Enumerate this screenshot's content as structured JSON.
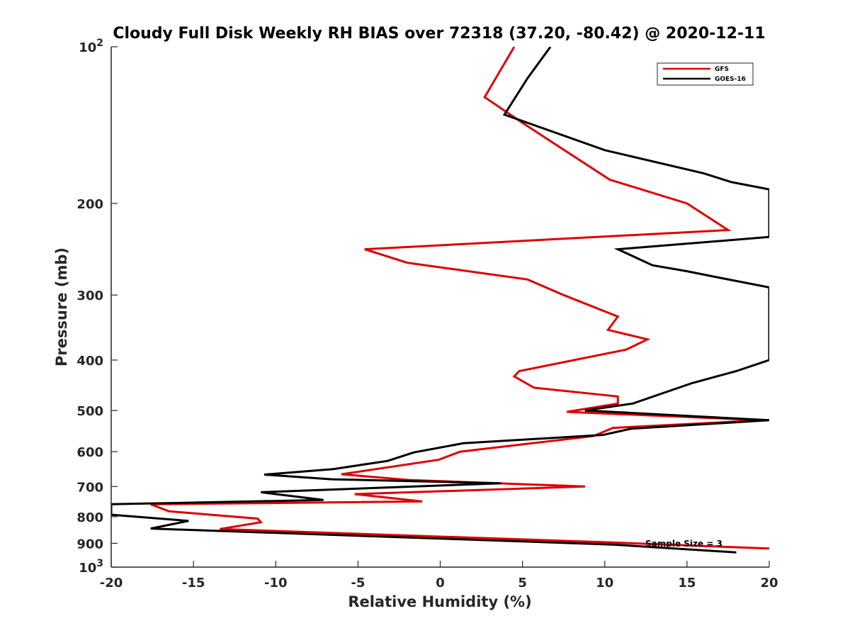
{
  "chart_data": {
    "type": "line",
    "title": "Cloudy Full Disk Weekly RH BIAS over 72318 (37.20, -80.42) @ 2020-12-11",
    "xlabel": "Relative Humidity (%)",
    "ylabel": "Pressure (mb)",
    "xlim": [
      -20,
      20
    ],
    "ylim": [
      100,
      1000
    ],
    "y_scale": "log",
    "y_reversed": true,
    "grid": false,
    "legend_position": "top-right",
    "x_tick_labels": [
      "-20",
      "-15",
      "-10",
      "-5",
      "0",
      "5",
      "10",
      "15",
      "20"
    ],
    "x_ticks": [
      -20,
      -15,
      -10,
      -5,
      0,
      5,
      10,
      15,
      20
    ],
    "y_ticks": [
      200,
      300,
      400,
      500,
      600,
      700,
      800,
      900
    ],
    "y_tick_labels": [
      "200",
      "300",
      "400",
      "500",
      "600",
      "700",
      "800",
      "900"
    ],
    "y_top_label": {
      "base": "10",
      "exp": "2"
    },
    "y_bottom_label": {
      "base": "10",
      "exp": "3"
    },
    "annotation": "Sample Size = 3",
    "series": [
      {
        "name": "GFS",
        "color": "#e00000",
        "points": [
          [
            4.5,
            100
          ],
          [
            2.7,
            125
          ],
          [
            5.0,
            140
          ],
          [
            10.3,
            180
          ],
          [
            15.0,
            200
          ],
          [
            17.5,
            225
          ],
          [
            -4.6,
            245
          ],
          [
            -2.0,
            260
          ],
          [
            5.3,
            280
          ],
          [
            7.5,
            300
          ],
          [
            10.8,
            330
          ],
          [
            10.2,
            350
          ],
          [
            12.6,
            365
          ],
          [
            11.3,
            382
          ],
          [
            4.8,
            420
          ],
          [
            4.5,
            430
          ],
          [
            5.7,
            452
          ],
          [
            10.8,
            470
          ],
          [
            10.8,
            485
          ],
          [
            7.7,
            503
          ],
          [
            19.6,
            522
          ],
          [
            10.5,
            540
          ],
          [
            9.3,
            560
          ],
          [
            1.2,
            600
          ],
          [
            -0.1,
            622
          ],
          [
            -6.0,
            663
          ],
          [
            -1.9,
            680
          ],
          [
            8.8,
            700
          ],
          [
            -5.2,
            724
          ],
          [
            -1.1,
            748
          ],
          [
            -17.6,
            757
          ],
          [
            -16.5,
            781
          ],
          [
            -11.1,
            807
          ],
          [
            -10.9,
            820
          ],
          [
            -13.4,
            845
          ],
          [
            10.5,
            897
          ],
          [
            20.0,
            921
          ]
        ]
      },
      {
        "name": "GOES-16",
        "color": "#000000",
        "points": [
          [
            6.7,
            100
          ],
          [
            5.3,
            115
          ],
          [
            3.9,
            135
          ],
          [
            10.0,
            158
          ],
          [
            16.0,
            175
          ],
          [
            17.7,
            182
          ],
          [
            20.0,
            188
          ],
          [
            20.0,
            232
          ],
          [
            10.8,
            245
          ],
          [
            12.9,
            263
          ],
          [
            15.0,
            270
          ],
          [
            17.0,
            278
          ],
          [
            20.0,
            290
          ],
          [
            20.0,
            400
          ],
          [
            18.0,
            420
          ],
          [
            15.3,
            443
          ],
          [
            11.7,
            485
          ],
          [
            8.8,
            500
          ],
          [
            20.0,
            522
          ],
          [
            11.6,
            542
          ],
          [
            9.9,
            557
          ],
          [
            1.4,
            578
          ],
          [
            -1.6,
            602
          ],
          [
            -3.2,
            625
          ],
          [
            -6.5,
            648
          ],
          [
            -10.7,
            664
          ],
          [
            -6.6,
            678
          ],
          [
            3.7,
            690
          ],
          [
            -10.9,
            718
          ],
          [
            -7.1,
            743
          ],
          [
            -20.0,
            757
          ],
          [
            -20.0,
            793
          ],
          [
            -15.3,
            815
          ],
          [
            -17.6,
            843
          ],
          [
            10.5,
            905
          ],
          [
            18.0,
            937
          ]
        ]
      }
    ]
  }
}
